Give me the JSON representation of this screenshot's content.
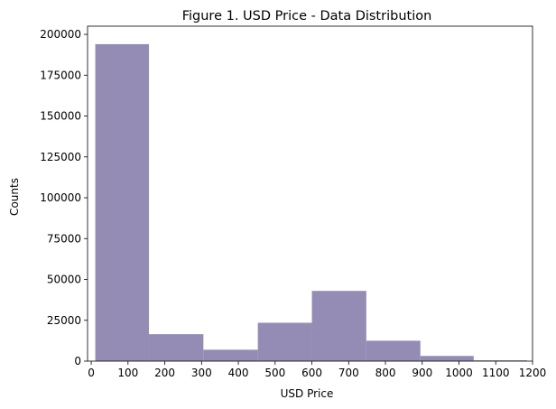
{
  "chart_data": {
    "type": "bar",
    "title": "Figure 1. USD Price - Data Distribution",
    "xlabel": "USD Price",
    "ylabel": "Counts",
    "xlim": [
      -10,
      1200
    ],
    "ylim": [
      0,
      205000
    ],
    "x_ticks": [
      "0",
      "100",
      "200",
      "300",
      "400",
      "500",
      "600",
      "700",
      "800",
      "900",
      "1000",
      "1100",
      "1200"
    ],
    "x_tick_values": [
      0,
      100,
      200,
      300,
      400,
      500,
      600,
      700,
      800,
      900,
      1000,
      1100,
      1200
    ],
    "y_ticks": [
      "0",
      "25000",
      "50000",
      "75000",
      "100000",
      "125000",
      "150000",
      "175000",
      "200000"
    ],
    "y_tick_values": [
      0,
      25000,
      50000,
      75000,
      100000,
      125000,
      150000,
      175000,
      200000
    ],
    "bins": [
      {
        "start": 11,
        "end": 157,
        "count": 194000
      },
      {
        "start": 157,
        "end": 305,
        "count": 16500
      },
      {
        "start": 305,
        "end": 453,
        "count": 7000
      },
      {
        "start": 453,
        "end": 600,
        "count": 23500
      },
      {
        "start": 600,
        "end": 748,
        "count": 43000
      },
      {
        "start": 748,
        "end": 895,
        "count": 12500
      },
      {
        "start": 895,
        "end": 1040,
        "count": 3200
      },
      {
        "start": 1040,
        "end": 1185,
        "count": 500
      }
    ],
    "bar_color": "#958cb6",
    "grid": false,
    "legend": "none"
  }
}
